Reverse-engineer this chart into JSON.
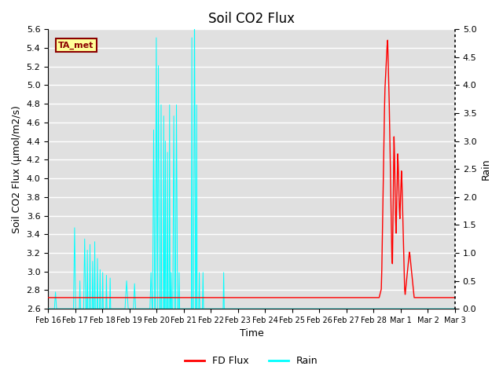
{
  "title": "Soil CO2 Flux",
  "xlabel": "Time",
  "ylabel_left": "Soil CO2 Flux (μmol/m2/s)",
  "ylabel_right": "Rain",
  "ylim_left": [
    2.6,
    5.6
  ],
  "ylim_right": [
    0.0,
    5.0
  ],
  "yticks_left": [
    2.6,
    2.8,
    3.0,
    3.2,
    3.4,
    3.6,
    3.8,
    4.0,
    4.2,
    4.4,
    4.6,
    4.8,
    5.0,
    5.2,
    5.4,
    5.6
  ],
  "yticks_right": [
    0.0,
    0.5,
    1.0,
    1.5,
    2.0,
    2.5,
    3.0,
    3.5,
    4.0,
    4.5,
    5.0
  ],
  "xtick_labels": [
    "Feb 16",
    "Feb 17",
    "Feb 18",
    "Feb 19",
    "Feb 20",
    "Feb 21",
    "Feb 22",
    "Feb 23",
    "Feb 24",
    "Feb 25",
    "Feb 26",
    "Feb 27",
    "Feb 28",
    "Mar 1",
    "Mar 2",
    "Mar 3"
  ],
  "annotation_text": "TA_met",
  "annotation_color": "#8B0000",
  "annotation_bg": "#FFFF99",
  "fd_flux_color": "#FF0000",
  "rain_color": "#00FFFF",
  "grid_color": "#FFFFFF",
  "bg_color": "#E0E0E0",
  "legend_labels": [
    "FD Flux",
    "Rain"
  ],
  "figsize": [
    6.4,
    4.8
  ],
  "dpi": 100
}
